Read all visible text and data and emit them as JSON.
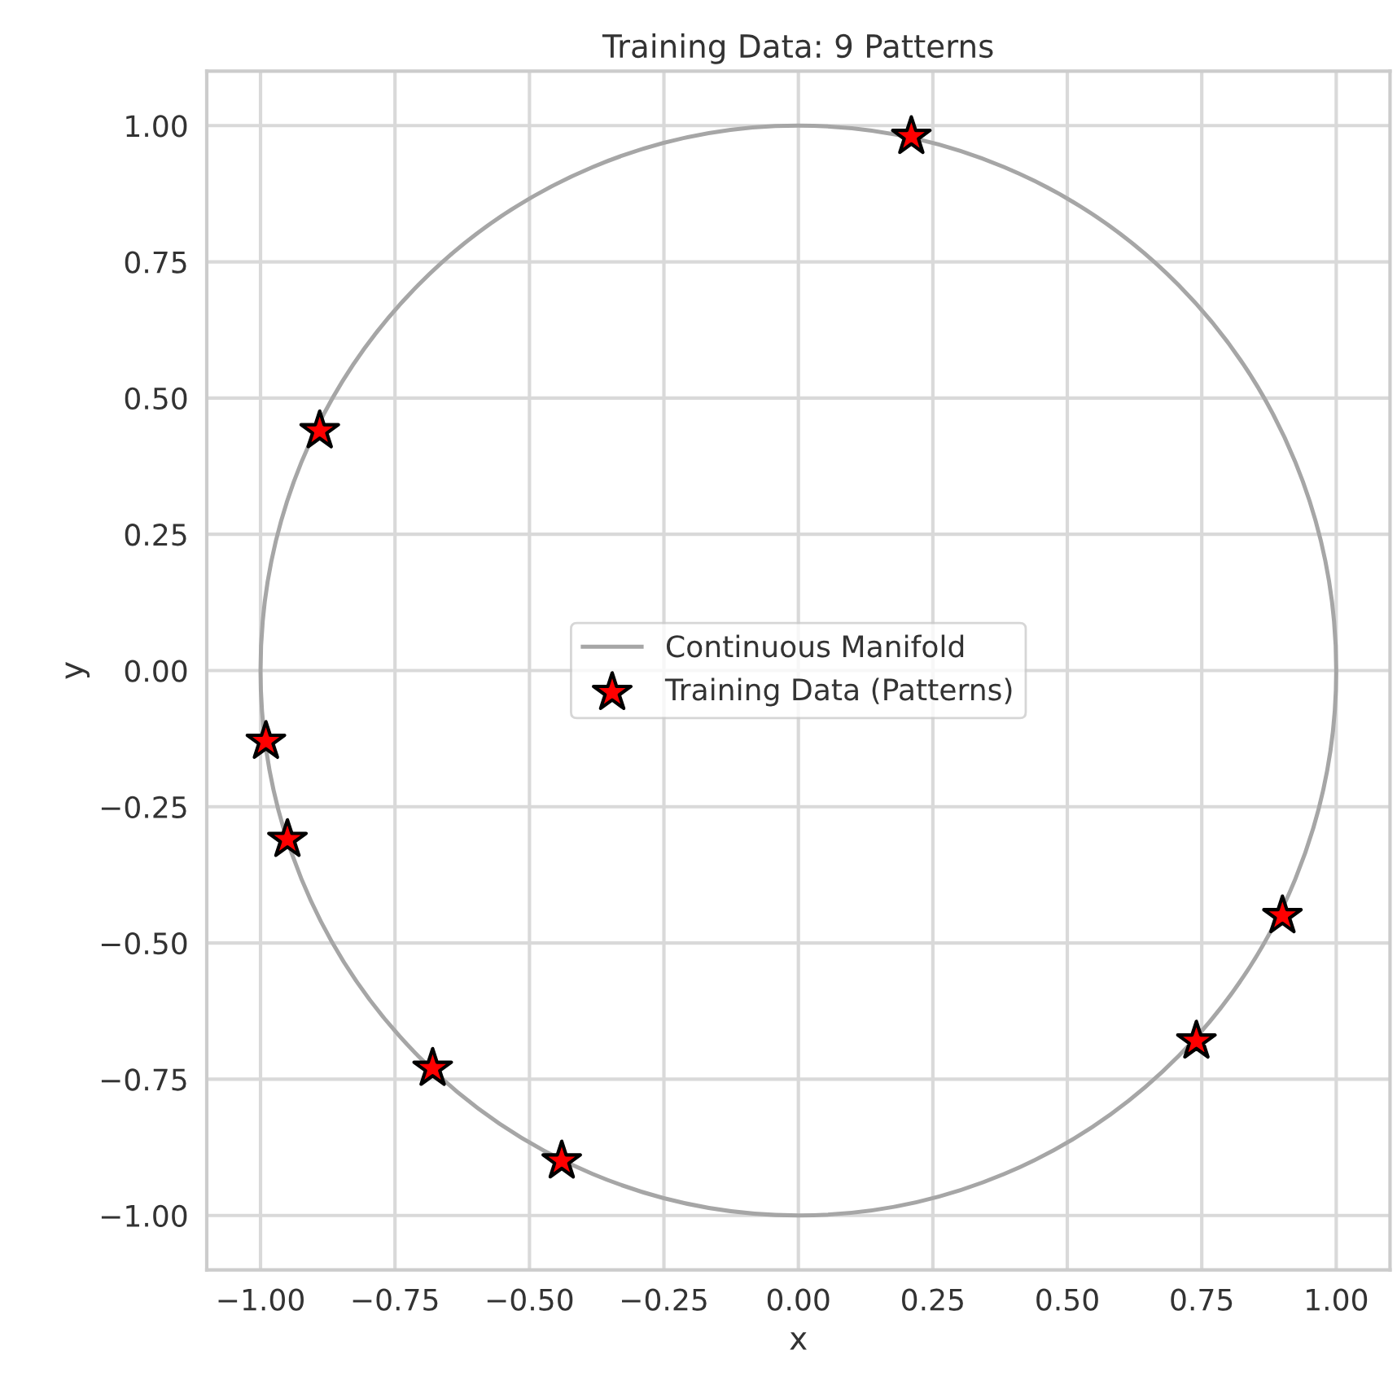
{
  "chart_data": {
    "type": "line",
    "title": "Training Data: 9 Patterns",
    "xlabel": "x",
    "ylabel": "y",
    "xlim": [
      -1.1,
      1.1
    ],
    "ylim": [
      -1.1,
      1.1
    ],
    "xticks": [
      {
        "value": -1,
        "label": "−1.00"
      },
      {
        "value": -0.75,
        "label": "−0.75"
      },
      {
        "value": -0.5,
        "label": "−0.50"
      },
      {
        "value": -0.25,
        "label": "−0.25"
      },
      {
        "value": 0,
        "label": "0.00"
      },
      {
        "value": 0.25,
        "label": "0.25"
      },
      {
        "value": 0.5,
        "label": "0.50"
      },
      {
        "value": 0.75,
        "label": "0.75"
      },
      {
        "value": 1,
        "label": "1.00"
      }
    ],
    "yticks": [
      {
        "value": -1,
        "label": "−1.00"
      },
      {
        "value": -0.75,
        "label": "−0.75"
      },
      {
        "value": -0.5,
        "label": "−0.50"
      },
      {
        "value": -0.25,
        "label": "−0.25"
      },
      {
        "value": 0,
        "label": "0.00"
      },
      {
        "value": 0.25,
        "label": "0.25"
      },
      {
        "value": 0.5,
        "label": "0.50"
      },
      {
        "value": 0.75,
        "label": "0.75"
      },
      {
        "value": 1,
        "label": "1.00"
      }
    ],
    "grid": true,
    "legend": "center",
    "series": [
      {
        "name": "Continuous Manifold",
        "color": "#a6a6a6",
        "line_style": "solid"
      },
      {
        "name": "Training Data (Patterns)",
        "type": "scatter",
        "color": "#ff0000",
        "marker": "star",
        "x": [
          0.21,
          -0.89,
          -0.99,
          -0.95,
          -0.68,
          -0.44,
          0.74,
          0.9
        ],
        "values": [
          0.98,
          0.44,
          -0.13,
          -0.31,
          -0.73,
          -0.9,
          -0.68,
          -0.45
        ]
      }
    ]
  }
}
